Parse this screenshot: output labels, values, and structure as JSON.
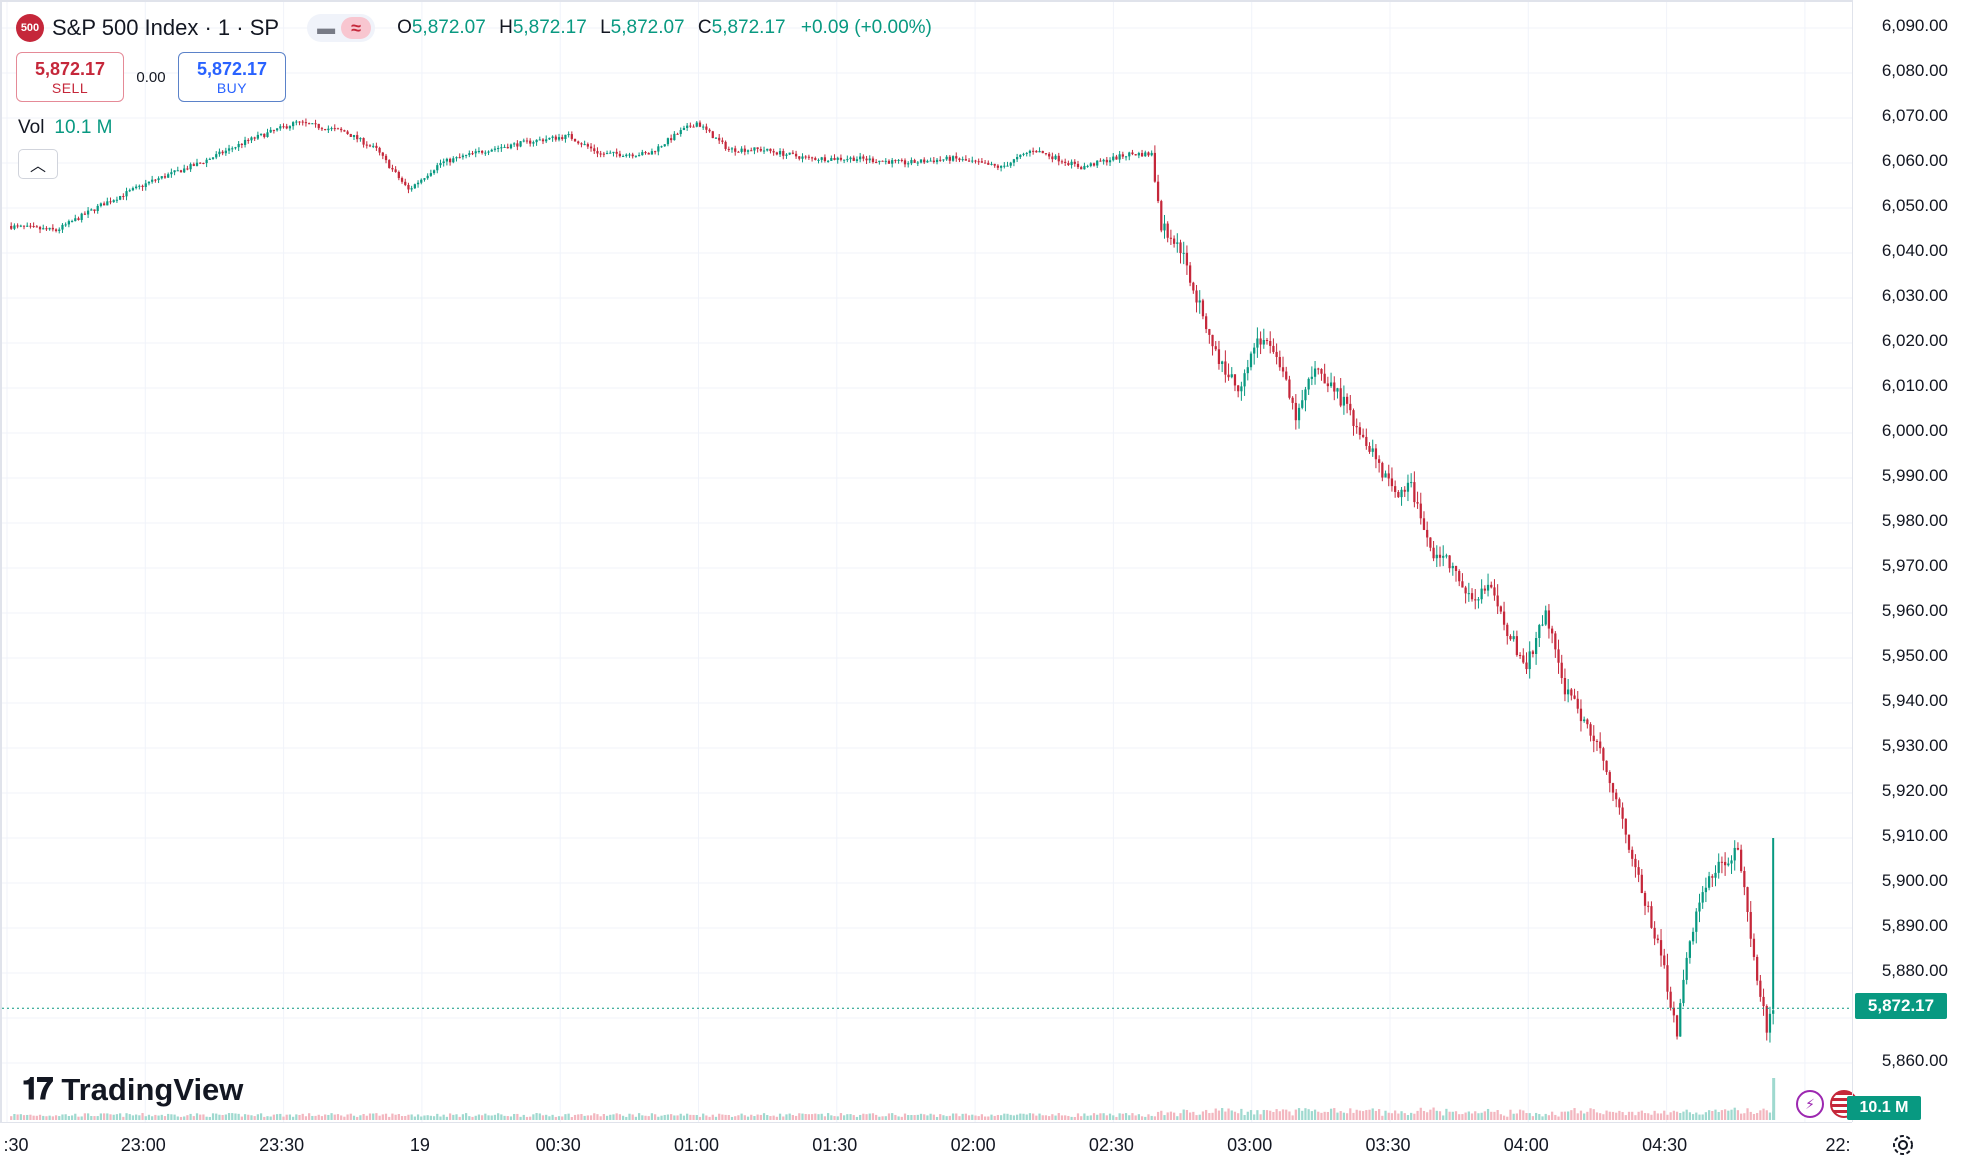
{
  "symbol": {
    "logo_text": "500",
    "title": "S&P 500 Index · 1 · SP"
  },
  "ohlc": {
    "o_label": "O",
    "o": "5,872.07",
    "h_label": "H",
    "h": "5,872.17",
    "l_label": "L",
    "l": "5,872.07",
    "c_label": "C",
    "c": "5,872.17",
    "change": "+0.09 (+0.00%)"
  },
  "trade": {
    "sell_price": "5,872.17",
    "sell_label": "SELL",
    "spread": "0.00",
    "buy_price": "5,872.17",
    "buy_label": "BUY"
  },
  "volume": {
    "label": "Vol",
    "value": "10.1 M"
  },
  "branding": {
    "name": "TradingView"
  },
  "price_scale": {
    "ticks": [
      "6,090.00",
      "6,080.00",
      "6,070.00",
      "6,060.00",
      "6,050.00",
      "6,040.00",
      "6,030.00",
      "6,020.00",
      "6,010.00",
      "6,000.00",
      "5,990.00",
      "5,980.00",
      "5,970.00",
      "5,960.00",
      "5,950.00",
      "5,940.00",
      "5,930.00",
      "5,920.00",
      "5,910.00",
      "5,900.00",
      "5,890.00",
      "5,880.00",
      "5,860.00"
    ],
    "last_price": "5,872.17",
    "volume_badge": "10.1 M"
  },
  "time_scale": {
    "ticks": [
      ":30",
      "23:00",
      "23:30",
      "19",
      "00:30",
      "01:00",
      "01:30",
      "02:00",
      "02:30",
      "03:00",
      "03:30",
      "04:00",
      "04:30",
      "22:"
    ]
  },
  "colors": {
    "up": "#089981",
    "down": "#c5273a",
    "grid": "#f0f3fa"
  },
  "chart_data": {
    "type": "candlestick",
    "interval": "1 minute",
    "ylim": [
      5852,
      6094
    ],
    "last_price": 5872.17,
    "x_ticks": [
      ":30",
      "23:00",
      "23:30",
      "19",
      "00:30",
      "01:00",
      "01:30",
      "02:00",
      "02:30",
      "03:00",
      "03:30",
      "04:00",
      "04:30",
      "22:"
    ],
    "close_path": [
      [
        0,
        6046
      ],
      [
        15,
        6045
      ],
      [
        30,
        6051
      ],
      [
        45,
        6056
      ],
      [
        60,
        6060
      ],
      [
        75,
        6065
      ],
      [
        90,
        6069
      ],
      [
        105,
        6067
      ],
      [
        115,
        6063
      ],
      [
        125,
        6054
      ],
      [
        135,
        6060
      ],
      [
        150,
        6063
      ],
      [
        165,
        6065
      ],
      [
        175,
        6066
      ],
      [
        185,
        6062
      ],
      [
        200,
        6062
      ],
      [
        210,
        6067
      ],
      [
        215,
        6069
      ],
      [
        225,
        6063
      ],
      [
        235,
        6063
      ],
      [
        250,
        6061
      ],
      [
        265,
        6061
      ],
      [
        280,
        6060
      ],
      [
        295,
        6061
      ],
      [
        310,
        6059
      ],
      [
        320,
        6063
      ],
      [
        335,
        6059
      ],
      [
        350,
        6062
      ],
      [
        357,
        6062
      ],
      [
        360,
        6046
      ],
      [
        366,
        6041
      ],
      [
        372,
        6028
      ],
      [
        378,
        6016
      ],
      [
        384,
        6010
      ],
      [
        390,
        6021
      ],
      [
        396,
        6018
      ],
      [
        402,
        6003
      ],
      [
        408,
        6015
      ],
      [
        414,
        6010
      ],
      [
        420,
        6003
      ],
      [
        426,
        5996
      ],
      [
        432,
        5987
      ],
      [
        438,
        5988
      ],
      [
        444,
        5974
      ],
      [
        450,
        5971
      ],
      [
        456,
        5963
      ],
      [
        462,
        5966
      ],
      [
        468,
        5956
      ],
      [
        474,
        5948
      ],
      [
        480,
        5960
      ],
      [
        486,
        5943
      ],
      [
        492,
        5936
      ],
      [
        498,
        5928
      ],
      [
        504,
        5914
      ],
      [
        510,
        5898
      ],
      [
        516,
        5884
      ],
      [
        521,
        5867
      ],
      [
        525,
        5888
      ],
      [
        530,
        5900
      ],
      [
        536,
        5905
      ],
      [
        540,
        5908
      ],
      [
        545,
        5882
      ],
      [
        549,
        5868
      ],
      [
        551,
        5872.17
      ]
    ],
    "x_max": 560
  }
}
